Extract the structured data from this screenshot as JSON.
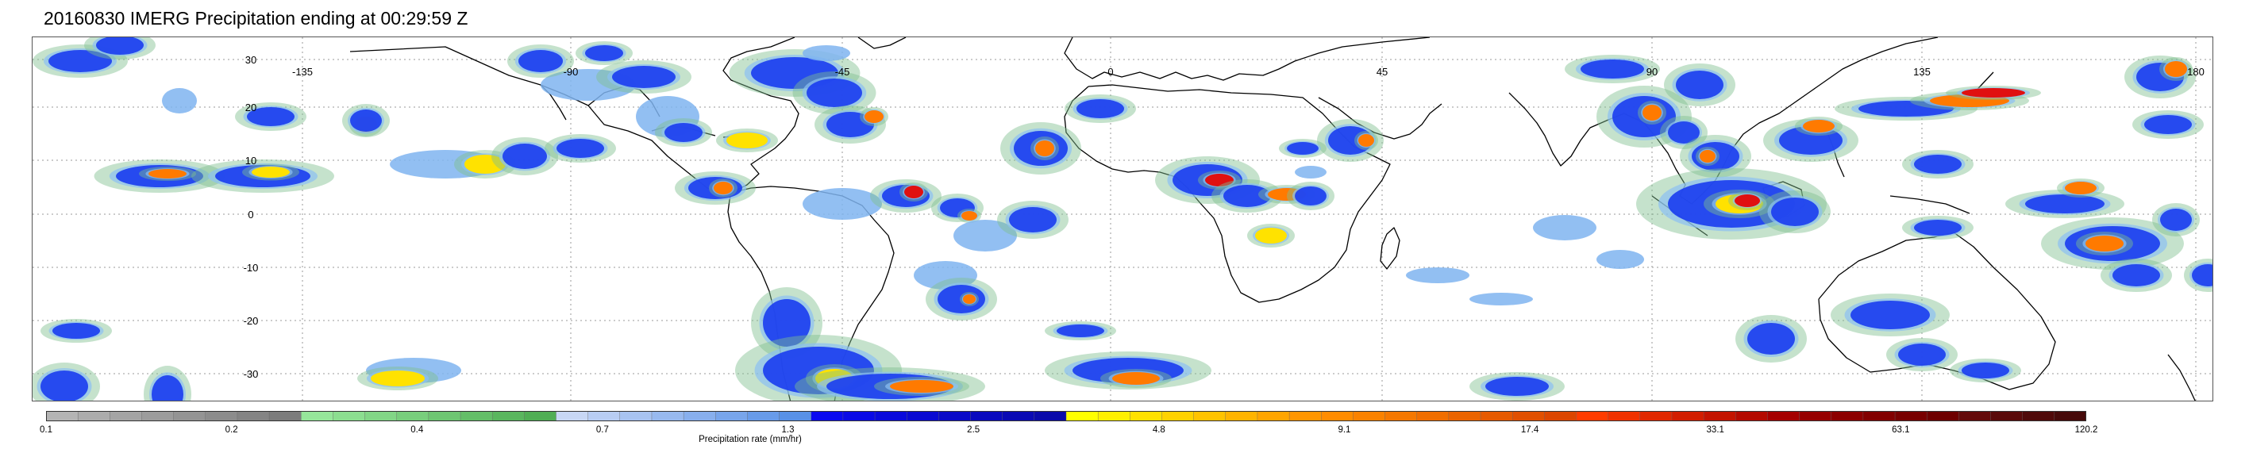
{
  "title": "20160830 IMERG Precipitation ending at 00:29:59 Z",
  "map": {
    "latitude_labels": [
      "30",
      "20",
      "10",
      "0",
      "-10",
      "-20",
      "-30"
    ],
    "longitude_labels": [
      "-135",
      "-90",
      "-45",
      "0",
      "45",
      "90",
      "135",
      "180"
    ],
    "gridlines": "dotted",
    "coastlines_color": "#000000"
  },
  "colorbar": {
    "label": "Precipitation rate (mm/hr)",
    "tick_labels": [
      "0.1",
      "0.2",
      "0.4",
      "0.7",
      "1.3",
      "2.5",
      "4.8",
      "9.1",
      "17.4",
      "33.1",
      "63.1",
      "120.2"
    ],
    "colors": [
      "#b4b4b4",
      "#acacac",
      "#a4a4a4",
      "#9c9c9c",
      "#949494",
      "#8c8c8c",
      "#848484",
      "#7c7c7c",
      "#96e69a",
      "#8cde90",
      "#82d686",
      "#78ce7c",
      "#6ec672",
      "#64be68",
      "#5ab65e",
      "#50ae54",
      "#c8d7f5",
      "#b8cdf3",
      "#a8c3f1",
      "#98b9ef",
      "#88afed",
      "#78a5eb",
      "#689be9",
      "#5891e7",
      "#0a0af0",
      "#0a0ae6",
      "#0a0adc",
      "#0a0ad2",
      "#0a0ac8",
      "#0a0abe",
      "#0a0ab4",
      "#0a0aaa",
      "#ffff00",
      "#fff000",
      "#ffe100",
      "#ffd200",
      "#ffc300",
      "#ffb400",
      "#ffa500",
      "#ff9600",
      "#ff8c00",
      "#fa8200",
      "#f57800",
      "#f06e00",
      "#eb6400",
      "#e65a00",
      "#e15000",
      "#dc4600",
      "#ff3c00",
      "#f03200",
      "#e12800",
      "#d21e00",
      "#c31400",
      "#b40a00",
      "#a50000",
      "#960000",
      "#8c0000",
      "#820000",
      "#780000",
      "#6e0000",
      "#640a0a",
      "#5a0a0a",
      "#500a0a",
      "#460a0a"
    ]
  }
}
